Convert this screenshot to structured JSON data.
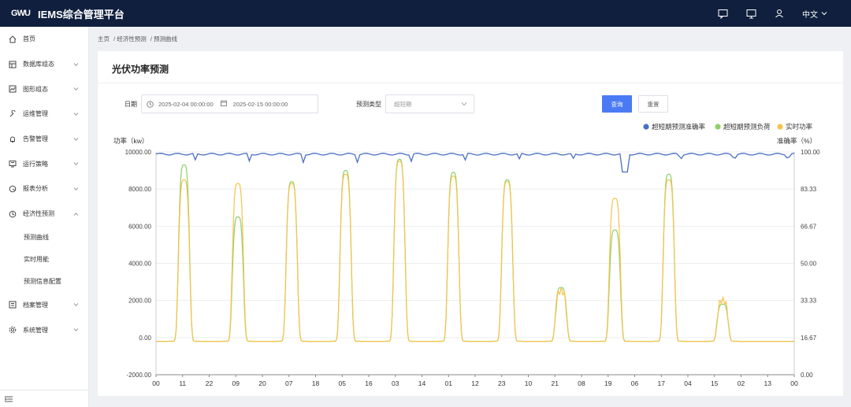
{
  "header": {
    "logo_text": "GWU",
    "title": "IEMS综合管理平台",
    "language": "中文"
  },
  "icons": {
    "message": "message-icon",
    "monitor": "monitor-icon",
    "user": "user-icon"
  },
  "sidebar": {
    "items": [
      {
        "label": "首页",
        "icon": "home-icon",
        "expandable": false
      },
      {
        "label": "数据库组态",
        "icon": "database-icon",
        "expandable": true
      },
      {
        "label": "图形组态",
        "icon": "chart-icon",
        "expandable": true
      },
      {
        "label": "运维管理",
        "icon": "wrench-icon",
        "expandable": true
      },
      {
        "label": "告警管理",
        "icon": "bell-icon",
        "expandable": true
      },
      {
        "label": "运行策略",
        "icon": "strategy-icon",
        "expandable": true
      },
      {
        "label": "报表分析",
        "icon": "report-icon",
        "expandable": true
      },
      {
        "label": "经济性预测",
        "icon": "forecast-icon",
        "expandable": true,
        "expanded": true
      }
    ],
    "subitems": [
      {
        "label": "预测曲线",
        "active": true
      },
      {
        "label": "实时用能",
        "active": false
      },
      {
        "label": "预测信息配置",
        "active": false
      }
    ],
    "items_after": [
      {
        "label": "档案管理",
        "icon": "archive-icon",
        "expandable": true
      },
      {
        "label": "系统管理",
        "icon": "settings-icon",
        "expandable": true
      }
    ]
  },
  "breadcrumb": [
    "主页",
    "/ 经济性预测",
    "/ 预测曲线"
  ],
  "page": {
    "title": "光伏功率预测",
    "date_label": "日期",
    "date_start": "2025-02-04 00:00:00",
    "date_end": "2025-02-15 00:00:00",
    "type_label": "预测类型",
    "type_placeholder": "超短期",
    "query_label": "查询",
    "reset_label": "重置"
  },
  "chart_data": {
    "type": "line",
    "y_left_label": "功率（kw）",
    "y_right_label": "准确率（%）",
    "y_left_ticks": [
      "10000.00",
      "8000.00",
      "6000.00",
      "4000.00",
      "2000.00",
      "0.00",
      "-2000.00"
    ],
    "y_right_ticks": [
      "100.00",
      "83.33",
      "66.67",
      "50.00",
      "33.33",
      "16.67",
      "0.00"
    ],
    "ylim_left": [
      -2000,
      10000
    ],
    "ylim_right": [
      0,
      100
    ],
    "x_tick_labels": [
      "00",
      "11",
      "22",
      "09",
      "20",
      "07",
      "18",
      "05",
      "16",
      "03",
      "14",
      "01",
      "12",
      "23",
      "10",
      "21",
      "08",
      "19",
      "06",
      "17",
      "04",
      "15",
      "02",
      "13",
      "00"
    ],
    "legend": [
      {
        "name": "超短期预测准确率",
        "color": "#4a6fc4"
      },
      {
        "name": "超短期预测负荷",
        "color": "#8fd06b"
      },
      {
        "name": "实时功率",
        "color": "#f5c34a"
      }
    ],
    "daily_peaks_forecast": [
      9300,
      6500,
      8400,
      9000,
      9600,
      8900,
      8500,
      2700,
      5800,
      8800,
      1800
    ],
    "daily_peaks_actual": [
      8500,
      8300,
      8300,
      8800,
      9500,
      8700,
      8400,
      2500,
      7500,
      8500,
      2000
    ],
    "accuracy_typical": 99,
    "accuracy_min": 89,
    "legend_position": "top-right",
    "grid": true
  }
}
